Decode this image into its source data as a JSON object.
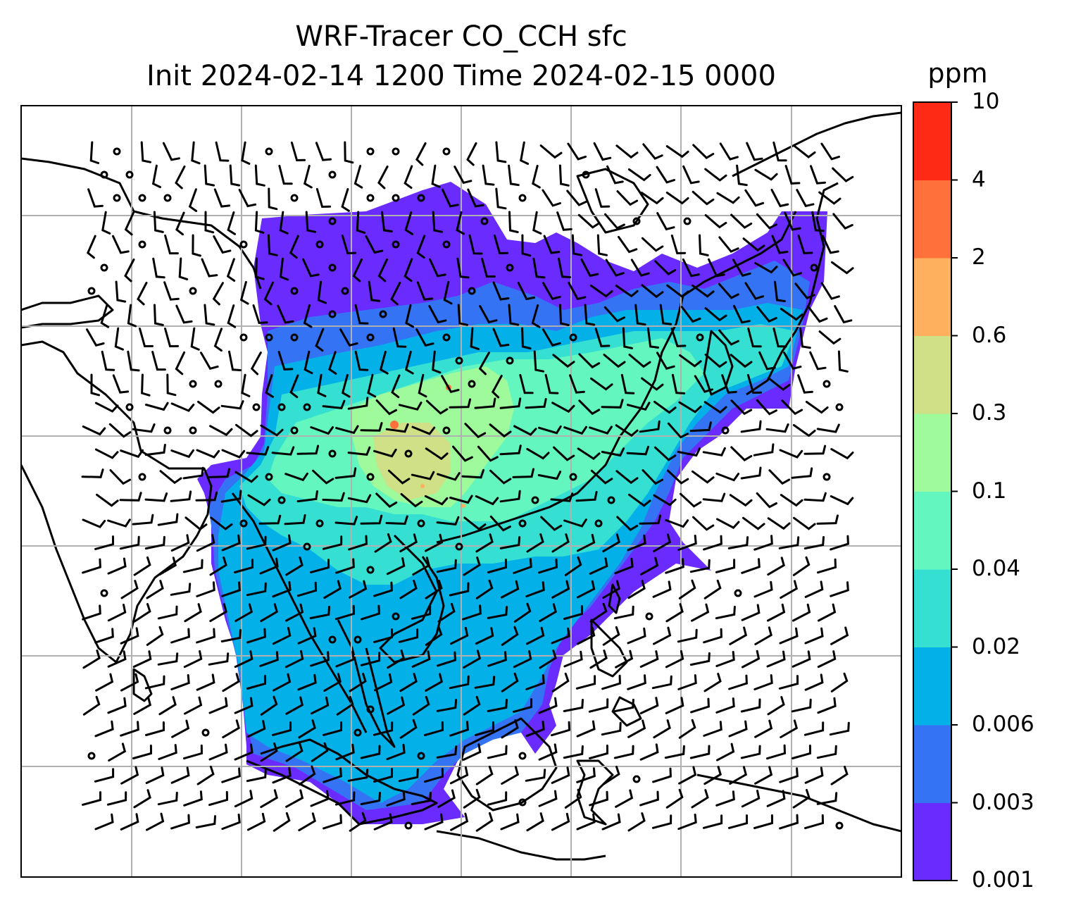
{
  "title": {
    "line1": "WRF-Tracer CO_CCH sfc",
    "line2": "Init 2024-02-14 1200 Time 2024-02-15 0000"
  },
  "colorbar": {
    "unit": "ppm",
    "ticks": [
      "10",
      "4",
      "2",
      "0.6",
      "0.3",
      "0.1",
      "0.04",
      "0.02",
      "0.006",
      "0.003",
      "0.001"
    ],
    "colors": [
      "#6a2bff",
      "#3573f5",
      "#04b0e8",
      "#35e0d3",
      "#63f6bf",
      "#9efa9a",
      "#cfe086",
      "#ffb05f",
      "#ff703b",
      "#ff2a16"
    ]
  },
  "map": {
    "field": "CO_CCH surface concentration",
    "level": "sfc",
    "gridlines": true,
    "wind_barbs": true,
    "coastlines": true
  }
}
